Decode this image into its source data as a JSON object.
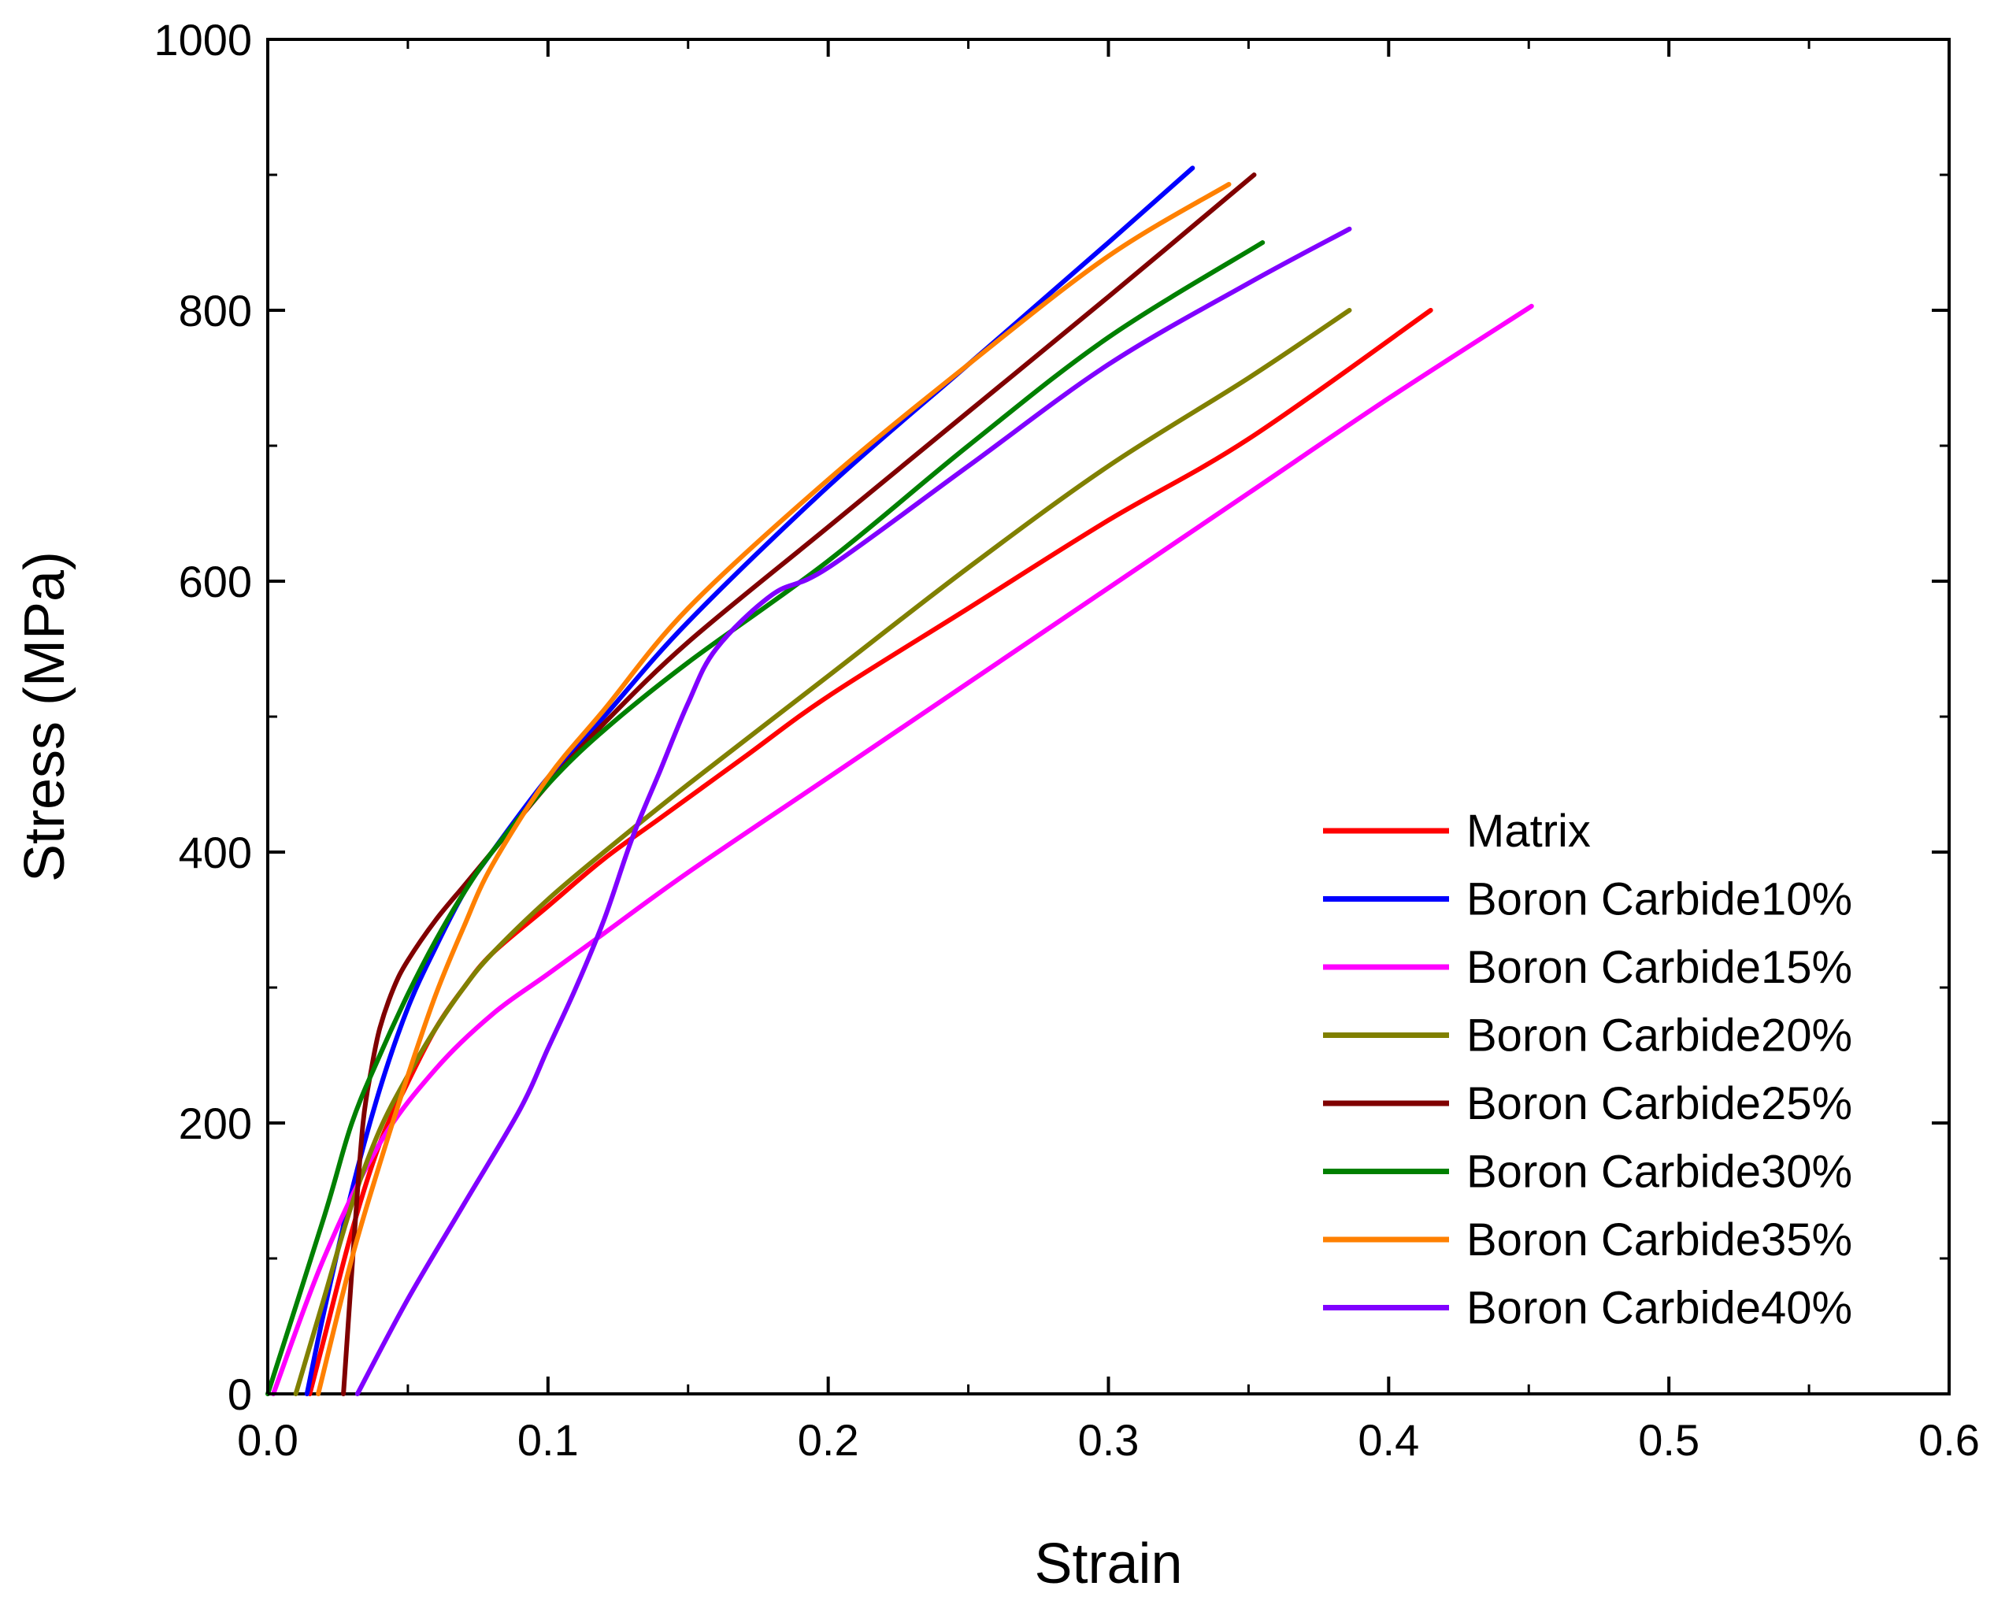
{
  "chart_data": {
    "type": "line",
    "title": "",
    "xlabel": "Strain",
    "ylabel": "Stress (MPa)",
    "xlim": [
      0.0,
      0.6
    ],
    "ylim": [
      0,
      1000
    ],
    "xticks": [
      0.0,
      0.1,
      0.2,
      0.3,
      0.4,
      0.5,
      0.6
    ],
    "xtick_labels": [
      "0.0",
      "0.1",
      "0.2",
      "0.3",
      "0.4",
      "0.5",
      "0.6"
    ],
    "yticks": [
      0,
      200,
      400,
      600,
      800,
      1000
    ],
    "ytick_labels": [
      "0",
      "200",
      "400",
      "600",
      "800",
      "1000"
    ],
    "grid": false,
    "legend_position": "bottom-right",
    "series": [
      {
        "name": "Matrix",
        "color": "#ff0000",
        "x": [
          0.015,
          0.02,
          0.03,
          0.04,
          0.05,
          0.06,
          0.07,
          0.08,
          0.1,
          0.12,
          0.14,
          0.17,
          0.2,
          0.25,
          0.3,
          0.35,
          0.415
        ],
        "y": [
          0,
          40,
          120,
          185,
          230,
          270,
          300,
          325,
          360,
          395,
          425,
          470,
          515,
          580,
          645,
          705,
          800
        ]
      },
      {
        "name": "Boron Carbide10%",
        "color": "#0000ff",
        "x": [
          0.014,
          0.02,
          0.03,
          0.04,
          0.05,
          0.06,
          0.07,
          0.08,
          0.1,
          0.12,
          0.15,
          0.2,
          0.25,
          0.3,
          0.33
        ],
        "y": [
          0,
          60,
          150,
          225,
          285,
          330,
          370,
          400,
          455,
          500,
          570,
          670,
          760,
          850,
          905
        ]
      },
      {
        "name": "Boron Carbide15%",
        "color": "#ff00ff",
        "x": [
          0.002,
          0.02,
          0.04,
          0.06,
          0.08,
          0.1,
          0.12,
          0.15,
          0.2,
          0.25,
          0.3,
          0.35,
          0.4,
          0.451
        ],
        "y": [
          0,
          100,
          185,
          240,
          280,
          310,
          340,
          385,
          455,
          525,
          595,
          665,
          735,
          803
        ]
      },
      {
        "name": "Boron Carbide20%",
        "color": "#808000",
        "x": [
          0.01,
          0.02,
          0.03,
          0.04,
          0.05,
          0.06,
          0.07,
          0.08,
          0.1,
          0.12,
          0.15,
          0.2,
          0.25,
          0.3,
          0.35,
          0.386
        ],
        "y": [
          0,
          70,
          140,
          195,
          235,
          270,
          300,
          325,
          365,
          400,
          450,
          530,
          610,
          685,
          750,
          800
        ]
      },
      {
        "name": "Boron Carbide25%",
        "color": "#800000",
        "x": [
          0.027,
          0.031,
          0.034,
          0.037,
          0.04,
          0.045,
          0.05,
          0.06,
          0.07,
          0.08,
          0.1,
          0.12,
          0.15,
          0.2,
          0.25,
          0.3,
          0.352
        ],
        "y": [
          0,
          120,
          200,
          240,
          270,
          300,
          320,
          350,
          375,
          400,
          450,
          495,
          555,
          640,
          725,
          810,
          900
        ]
      },
      {
        "name": "Boron Carbide30%",
        "color": "#008000",
        "x": [
          0.0,
          0.02,
          0.03,
          0.04,
          0.05,
          0.06,
          0.07,
          0.08,
          0.1,
          0.12,
          0.15,
          0.2,
          0.25,
          0.3,
          0.355
        ],
        "y": [
          0,
          130,
          200,
          250,
          295,
          335,
          370,
          400,
          450,
          490,
          540,
          615,
          700,
          780,
          850
        ]
      },
      {
        "name": "Boron Carbide35%",
        "color": "#ff8000",
        "x": [
          0.018,
          0.03,
          0.04,
          0.05,
          0.06,
          0.07,
          0.08,
          0.1,
          0.12,
          0.15,
          0.2,
          0.25,
          0.3,
          0.343
        ],
        "y": [
          0,
          100,
          170,
          235,
          295,
          345,
          390,
          455,
          505,
          580,
          675,
          760,
          840,
          893
        ]
      },
      {
        "name": "Boron Carbide40%",
        "color": "#8000ff",
        "x": [
          0.032,
          0.05,
          0.07,
          0.09,
          0.1,
          0.11,
          0.12,
          0.13,
          0.14,
          0.15,
          0.16,
          0.18,
          0.2,
          0.25,
          0.3,
          0.35,
          0.386
        ],
        "y": [
          0,
          70,
          140,
          210,
          255,
          300,
          350,
          410,
          460,
          510,
          550,
          590,
          610,
          685,
          760,
          820,
          860
        ]
      }
    ]
  }
}
